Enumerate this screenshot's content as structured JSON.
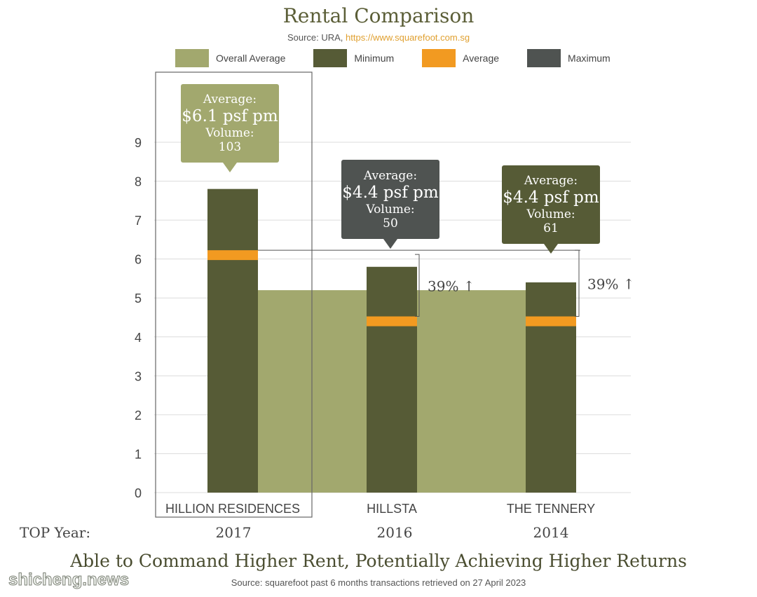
{
  "chart_data": {
    "type": "bar",
    "title": "Rental Comparison",
    "subtitle": "Able to Command Higher Rent, Potentially Achieving Higher Returns",
    "source_prefix": "Source: URA, ",
    "source_url": "https://www.squarefoot.com.sg",
    "footnote": "Source: squarefoot past 6 months transactions retrieved on 27 April 2023",
    "ylim": [
      0,
      9
    ],
    "yticks": [
      0,
      1,
      2,
      3,
      4,
      5,
      6,
      7,
      8,
      9
    ],
    "categories": [
      "HILLION RESIDENCES",
      "HILLSTA",
      "THE TENNERY"
    ],
    "legend": [
      "Overall Average",
      "Minimum",
      "Average",
      "Maximum"
    ],
    "overall_average": 5.2,
    "series": [
      {
        "name": "Maximum",
        "values": [
          7.8,
          5.8,
          5.4
        ]
      },
      {
        "name": "Average",
        "values": [
          6.1,
          4.4,
          4.4
        ]
      }
    ],
    "colors": {
      "overall_average": "#a2a86e",
      "minimum": "#565b36",
      "average": "#f29a21",
      "maximum": "#4f5351"
    },
    "callouts": [
      {
        "avg_label": "Average:",
        "avg_value": "$6.1 psf pm",
        "vol_label": "Volume:",
        "volume": "103"
      },
      {
        "avg_label": "Average:",
        "avg_value": "$4.4 psf pm",
        "vol_label": "Volume:",
        "volume": "50"
      },
      {
        "avg_label": "Average:",
        "avg_value": "$4.4 psf pm",
        "vol_label": "Volume:",
        "volume": "61"
      }
    ],
    "differences": [
      "39% ↑",
      "39% ↑"
    ],
    "top_year_label": "TOP Year:",
    "top_years": [
      "2017",
      "2016",
      "2014"
    ]
  },
  "watermark": "shicheng.news"
}
